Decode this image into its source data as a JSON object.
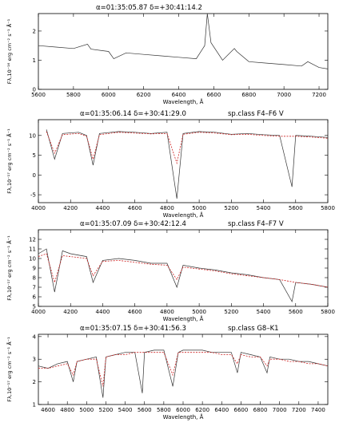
{
  "chart_data": [
    {
      "type": "line",
      "title": "α=01:35:05.87  δ=+30:41:14.2",
      "xlabel": "Wavelength, Å",
      "ylabel": "Fλ,10⁻¹⁶ erg cm⁻² s⁻¹ Å⁻¹",
      "xlim": [
        5600,
        7250
      ],
      "ylim": [
        0,
        2.6
      ],
      "xticks": [
        5600,
        5800,
        6000,
        6200,
        6400,
        6600,
        6800,
        7000,
        7200
      ],
      "yticks": [
        0,
        1,
        2
      ],
      "spectral_class": "",
      "series": [
        {
          "color": "#333333",
          "x": [
            5600,
            5700,
            5800,
            5880,
            5900,
            6000,
            6030,
            6100,
            6200,
            6300,
            6400,
            6500,
            6548,
            6563,
            6584,
            6650,
            6717,
            6731,
            6800,
            6900,
            7000,
            7100,
            7136,
            7200,
            7250
          ],
          "y": [
            1.5,
            1.45,
            1.4,
            1.55,
            1.38,
            1.3,
            1.05,
            1.25,
            1.2,
            1.15,
            1.1,
            1.05,
            1.5,
            2.6,
            1.6,
            1.0,
            1.4,
            1.3,
            0.95,
            0.9,
            0.85,
            0.8,
            0.95,
            0.75,
            0.7
          ]
        }
      ]
    },
    {
      "type": "line",
      "title": "α=01:35:06.14  δ=+30:41:29.0",
      "xlabel": "Wavelength, Å",
      "ylabel": "Fλ,10⁻¹⁷ erg cm⁻² s⁻¹ Å⁻¹",
      "xlim": [
        4000,
        5800
      ],
      "ylim": [
        -7,
        14
      ],
      "xticks": [
        4000,
        4200,
        4400,
        4600,
        4800,
        5000,
        5200,
        5400,
        5600,
        5800
      ],
      "yticks": [
        -5,
        0,
        5,
        10
      ],
      "spectral_class": "sp.class F4–F6 V",
      "series": [
        {
          "color": "#333333",
          "x": [
            4050,
            4101,
            4150,
            4250,
            4300,
            4340,
            4380,
            4500,
            4600,
            4700,
            4800,
            4861,
            4900,
            5000,
            5100,
            5200,
            5300,
            5400,
            5500,
            5577,
            5600,
            5700,
            5800
          ],
          "y": [
            11.5,
            4.0,
            10.5,
            10.8,
            10.0,
            2.5,
            10.5,
            11.0,
            10.8,
            10.5,
            10.8,
            -6.0,
            10.5,
            11.0,
            10.8,
            10.3,
            10.5,
            10.2,
            10.0,
            -3.0,
            10.0,
            9.8,
            9.5
          ]
        },
        {
          "color": "#cc2222",
          "x": [
            4050,
            4101,
            4150,
            4250,
            4300,
            4340,
            4380,
            4500,
            4600,
            4700,
            4800,
            4861,
            4900,
            5000,
            5100,
            5200,
            5300,
            5400,
            5500,
            5600,
            5700,
            5800
          ],
          "y": [
            11.0,
            5.5,
            10.2,
            10.5,
            9.8,
            4.0,
            10.2,
            10.8,
            10.6,
            10.4,
            10.5,
            3.0,
            10.3,
            10.8,
            10.6,
            10.2,
            10.3,
            10.0,
            9.8,
            9.8,
            9.6,
            9.3
          ]
        }
      ]
    },
    {
      "type": "line",
      "title": "α=01:35:07.09  δ=+30:42:12.4",
      "xlabel": "Wavelength, Å",
      "ylabel": "Fλ,10⁻¹⁷ erg cm⁻² s⁻¹ Å⁻¹",
      "xlim": [
        4000,
        5800
      ],
      "ylim": [
        5,
        13
      ],
      "xticks": [
        4000,
        4200,
        4400,
        4600,
        4800,
        5000,
        5200,
        5400,
        5600,
        5800
      ],
      "yticks": [
        5,
        6,
        7,
        8,
        9,
        10,
        11,
        12
      ],
      "spectral_class": "sp.class F4–F7 V",
      "series": [
        {
          "color": "#333333",
          "x": [
            4000,
            4050,
            4101,
            4150,
            4200,
            4300,
            4340,
            4400,
            4500,
            4600,
            4700,
            4800,
            4861,
            4900,
            5000,
            5100,
            5200,
            5300,
            5400,
            5500,
            5577,
            5600,
            5700,
            5800
          ],
          "y": [
            10.5,
            11.0,
            6.5,
            10.8,
            10.5,
            10.2,
            7.5,
            9.8,
            10.0,
            9.8,
            9.5,
            9.5,
            7.0,
            9.3,
            9.0,
            8.8,
            8.5,
            8.3,
            8.0,
            7.8,
            5.5,
            7.5,
            7.3,
            7.0
          ]
        },
        {
          "color": "#cc2222",
          "x": [
            4000,
            4050,
            4101,
            4150,
            4200,
            4300,
            4340,
            4400,
            4500,
            4600,
            4700,
            4800,
            4861,
            4900,
            5000,
            5100,
            5200,
            5300,
            5400,
            5500,
            5600,
            5700,
            5800
          ],
          "y": [
            10.2,
            10.5,
            7.5,
            10.3,
            10.2,
            10.0,
            8.2,
            9.7,
            9.8,
            9.6,
            9.4,
            9.3,
            7.8,
            9.1,
            8.9,
            8.7,
            8.4,
            8.2,
            8.0,
            7.8,
            7.5,
            7.3,
            7.0
          ]
        }
      ]
    },
    {
      "type": "line",
      "title": "α=01:35:07.15  δ=+30:41:56.3",
      "xlabel": "Wavelength, Å",
      "ylabel": "Fλ,10⁻¹⁷ erg cm⁻² s⁻¹ Å⁻¹",
      "xlim": [
        4500,
        7500
      ],
      "ylim": [
        1,
        4.1
      ],
      "xticks": [
        4600,
        4800,
        5000,
        5200,
        5400,
        5600,
        5800,
        6000,
        6200,
        6400,
        6600,
        6800,
        7000,
        7200,
        7400
      ],
      "yticks": [
        1,
        2,
        3,
        4
      ],
      "spectral_class": "sp.class G8–K1",
      "series": [
        {
          "color": "#333333",
          "x": [
            4500,
            4600,
            4700,
            4800,
            4861,
            4900,
            5000,
            5100,
            5170,
            5200,
            5300,
            5400,
            5500,
            5577,
            5600,
            5700,
            5800,
            5893,
            5950,
            6000,
            6100,
            6200,
            6300,
            6400,
            6500,
            6563,
            6600,
            6700,
            6800,
            6870,
            6900,
            7000,
            7100,
            7200,
            7300,
            7400,
            7500
          ],
          "y": [
            2.7,
            2.6,
            2.8,
            2.9,
            2.0,
            2.9,
            3.0,
            3.1,
            1.3,
            3.1,
            3.2,
            3.3,
            3.3,
            1.5,
            3.3,
            3.4,
            3.4,
            1.8,
            3.3,
            3.4,
            3.4,
            3.4,
            3.3,
            3.3,
            3.3,
            2.4,
            3.3,
            3.2,
            3.1,
            2.4,
            3.1,
            3.0,
            3.0,
            2.9,
            2.9,
            2.8,
            2.7
          ]
        },
        {
          "color": "#cc2222",
          "x": [
            4500,
            4600,
            4700,
            4800,
            4861,
            4900,
            5000,
            5100,
            5170,
            5200,
            5300,
            5400,
            5500,
            5600,
            5700,
            5800,
            5893,
            5950,
            6000,
            6100,
            6200,
            6300,
            6400,
            6500,
            6563,
            6600,
            6700,
            6800,
            6870,
            6900,
            7000,
            7100,
            7200,
            7300,
            7400,
            7500
          ],
          "y": [
            2.6,
            2.6,
            2.7,
            2.8,
            2.3,
            2.9,
            3.0,
            3.0,
            1.8,
            3.1,
            3.2,
            3.2,
            3.3,
            3.3,
            3.3,
            3.3,
            2.3,
            3.3,
            3.3,
            3.3,
            3.3,
            3.3,
            3.2,
            3.2,
            2.8,
            3.2,
            3.1,
            3.1,
            2.7,
            3.0,
            3.0,
            2.9,
            2.9,
            2.8,
            2.8,
            2.7
          ]
        }
      ]
    }
  ]
}
